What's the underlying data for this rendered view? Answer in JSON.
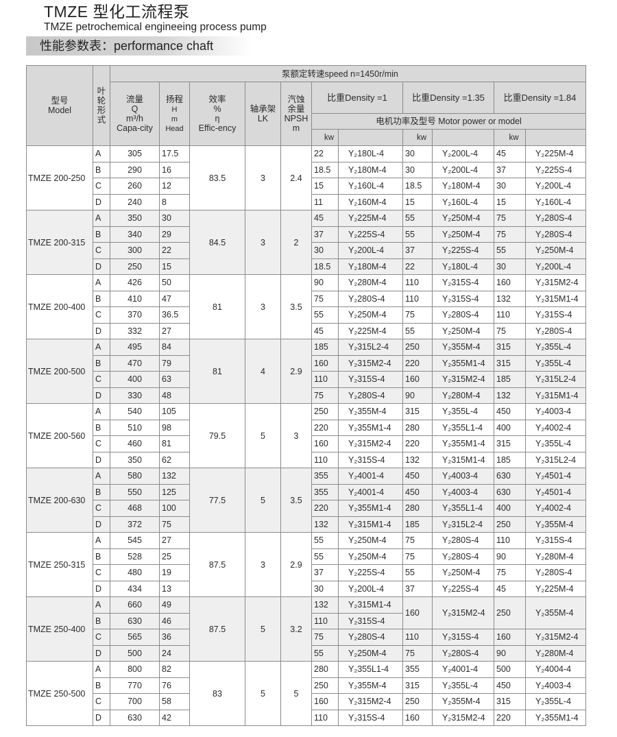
{
  "title": "TMZE 型化工流程泵",
  "subtitle": "TMZE petrochemical engineeing process pump",
  "section": "性能参数表：performance chaft",
  "colors": {
    "header_bg": "#d9d9d9",
    "shaded_group_bg": "#efefef",
    "border": "#8a8a8a"
  },
  "header": {
    "model": [
      "型号",
      "Model"
    ],
    "impeller": [
      "叶",
      "轮",
      "形",
      "式"
    ],
    "speed": "泵额定转速speed n=1450r/min",
    "flow": [
      "流量",
      "Q",
      "m³/h",
      "Capa-city"
    ],
    "head": [
      "扬程",
      "H",
      "m",
      "Head"
    ],
    "efficiency": [
      "效率",
      "%",
      "η",
      "Effic-ency"
    ],
    "lk": [
      "轴承架",
      "LK"
    ],
    "npsh": [
      "汽蚀",
      "余量",
      "NPSH",
      "m"
    ],
    "density": [
      "比重Density =1",
      "比重Density =1.35",
      "比重Density =1.84"
    ],
    "motor": "电机功率及型号  Motor power or model",
    "kw": "kw"
  },
  "groups": [
    {
      "model": "TMZE 200-250",
      "eff": "83.5",
      "lk": "3",
      "npsh": "2.4",
      "rows": [
        {
          "t": "A",
          "q": "305",
          "h": "17.5",
          "m": [
            "22",
            "Y₂180L-4",
            "30",
            "Y₂200L-4",
            "45",
            "Y₂225M-4"
          ]
        },
        {
          "t": "B",
          "q": "290",
          "h": "16",
          "m": [
            "18.5",
            "Y₂180M-4",
            "30",
            "Y₂200L-4",
            "37",
            "Y₂225S-4"
          ]
        },
        {
          "t": "C",
          "q": "260",
          "h": "12",
          "m": [
            "15",
            "Y₂160L-4",
            "18.5",
            "Y₂180M-4",
            "30",
            "Y₂200L-4"
          ]
        },
        {
          "t": "D",
          "q": "240",
          "h": "8",
          "m": [
            "11",
            "Y₂160M-4",
            "15",
            "Y₂160L-4",
            "15",
            "Y₂160L-4"
          ]
        }
      ]
    },
    {
      "model": "TMZE 200-315",
      "eff": "84.5",
      "lk": "3",
      "npsh": "2",
      "rows": [
        {
          "t": "A",
          "q": "350",
          "h": "30",
          "m": [
            "45",
            "Y₂225M-4",
            "55",
            "Y₂250M-4",
            "75",
            "Y₂280S-4"
          ]
        },
        {
          "t": "B",
          "q": "340",
          "h": "29",
          "m": [
            "37",
            "Y₂225S-4",
            "55",
            "Y₂250M-4",
            "75",
            "Y₂280S-4"
          ]
        },
        {
          "t": "C",
          "q": "300",
          "h": "22",
          "m": [
            "30",
            "Y₂200L-4",
            "37",
            "Y₂225S-4",
            "55",
            "Y₂250M-4"
          ]
        },
        {
          "t": "D",
          "q": "250",
          "h": "15",
          "m": [
            "18.5",
            "Y₂180M-4",
            "22",
            "Y₂180L-4",
            "30",
            "Y₂200L-4"
          ]
        }
      ]
    },
    {
      "model": "TMZE 200-400",
      "eff": "81",
      "lk": "3",
      "npsh": "3.5",
      "rows": [
        {
          "t": "A",
          "q": "426",
          "h": "50",
          "m": [
            "90",
            "Y₂280M-4",
            "110",
            "Y₂315S-4",
            "160",
            "Y₂315M2-4"
          ]
        },
        {
          "t": "B",
          "q": "410",
          "h": "47",
          "m": [
            "75",
            "Y₂280S-4",
            "110",
            "Y₂315S-4",
            "132",
            "Y₂315M1-4"
          ]
        },
        {
          "t": "C",
          "q": "370",
          "h": "36.5",
          "m": [
            "55",
            "Y₂250M-4",
            "75",
            "Y₂280S-4",
            "110",
            "Y₂315S-4"
          ]
        },
        {
          "t": "D",
          "q": "332",
          "h": "27",
          "m": [
            "45",
            "Y₂225M-4",
            "55",
            "Y₂250M-4",
            "75",
            "Y₂280S-4"
          ]
        }
      ]
    },
    {
      "model": "TMZE 200-500",
      "eff": "81",
      "lk": "4",
      "npsh": "2.9",
      "rows": [
        {
          "t": "A",
          "q": "495",
          "h": "84",
          "m": [
            "185",
            "Y₂315L2-4",
            "250",
            "Y₂355M-4",
            "315",
            "Y₂355L-4"
          ]
        },
        {
          "t": "B",
          "q": "470",
          "h": "79",
          "m": [
            "160",
            "Y₂315M2-4",
            "220",
            "Y₂355M1-4",
            "315",
            "Y₂355L-4"
          ]
        },
        {
          "t": "C",
          "q": "400",
          "h": "63",
          "m": [
            "110",
            "Y₂315S-4",
            "160",
            "Y₂315M2-4",
            "185",
            "Y₂315L2-4"
          ]
        },
        {
          "t": "D",
          "q": "330",
          "h": "48",
          "m": [
            "75",
            "Y₂280S-4",
            "90",
            "Y₂280M-4",
            "132",
            "Y₂315M1-4"
          ]
        }
      ]
    },
    {
      "model": "TMZE 200-560",
      "eff": "79.5",
      "lk": "5",
      "npsh": "3",
      "rows": [
        {
          "t": "A",
          "q": "540",
          "h": "105",
          "m": [
            "250",
            "Y₂355M-4",
            "315",
            "Y₂355L-4",
            "450",
            "Y₂4003-4"
          ]
        },
        {
          "t": "B",
          "q": "510",
          "h": "98",
          "m": [
            "220",
            "Y₂355M1-4",
            "280",
            "Y₂355L1-4",
            "400",
            "Y₂4002-4"
          ]
        },
        {
          "t": "C",
          "q": "460",
          "h": "81",
          "m": [
            "160",
            "Y₂315M2-4",
            "220",
            "Y₂355M1-4",
            "315",
            "Y₂355L-4"
          ]
        },
        {
          "t": "D",
          "q": "350",
          "h": "62",
          "m": [
            "110",
            "Y₂315S-4",
            "132",
            "Y₂315M1-4",
            "185",
            "Y₂315L2-4"
          ]
        }
      ]
    },
    {
      "model": "TMZE 200-630",
      "eff": "77.5",
      "lk": "5",
      "npsh": "3.5",
      "rows": [
        {
          "t": "A",
          "q": "580",
          "h": "132",
          "m": [
            "355",
            "Y₂4001-4",
            "450",
            "Y₂4003-4",
            "630",
            "Y₂4501-4"
          ]
        },
        {
          "t": "B",
          "q": "550",
          "h": "125",
          "m": [
            "355",
            "Y₂4001-4",
            "450",
            "Y₂4003-4",
            "630",
            "Y₂4501-4"
          ]
        },
        {
          "t": "C",
          "q": "468",
          "h": "100",
          "m": [
            "220",
            "Y₂355M1-4",
            "280",
            "Y₂355L1-4",
            "400",
            "Y₂4002-4"
          ]
        },
        {
          "t": "D",
          "q": "372",
          "h": "75",
          "m": [
            "132",
            "Y₂315M1-4",
            "185",
            "Y₂315L2-4",
            "250",
            "Y₂355M-4"
          ]
        }
      ]
    },
    {
      "model": "TMZE 250-315",
      "eff": "87.5",
      "lk": "3",
      "npsh": "2.9",
      "rows": [
        {
          "t": "A",
          "q": "545",
          "h": "27",
          "m": [
            "55",
            "Y₂250M-4",
            "75",
            "Y₂280S-4",
            "110",
            "Y₂315S-4"
          ]
        },
        {
          "t": "B",
          "q": "528",
          "h": "25",
          "m": [
            "55",
            "Y₂250M-4",
            "75",
            "Y₂280S-4",
            "90",
            "Y₂280M-4"
          ]
        },
        {
          "t": "C",
          "q": "480",
          "h": "19",
          "m": [
            "37",
            "Y₂225S-4",
            "55",
            "Y₂250M-4",
            "75",
            "Y₂280S-4"
          ]
        },
        {
          "t": "D",
          "q": "434",
          "h": "13",
          "m": [
            "30",
            "Y₂200L-4",
            "37",
            "Y₂225S-4",
            "45",
            "Y₂225M-4"
          ]
        }
      ]
    },
    {
      "model": "TMZE 250-400",
      "eff": "87.5",
      "lk": "5",
      "npsh": "3.2",
      "rows": [
        {
          "t": "A",
          "q": "660",
          "h": "49",
          "m": [
            "132",
            "Y₂315M1-4",
            "160",
            "Y₂315M2-4",
            "250",
            "Y₂355M-4"
          ]
        },
        {
          "t": "B",
          "q": "630",
          "h": "46",
          "m": [
            "110",
            "Y₂315S-4",
            null,
            null,
            null,
            null
          ]
        },
        {
          "t": "C",
          "q": "565",
          "h": "36",
          "m": [
            "75",
            "Y₂280S-4",
            "110",
            "Y₂315S-4",
            "160",
            "Y₂315M2-4"
          ]
        },
        {
          "t": "D",
          "q": "500",
          "h": "24",
          "m": [
            "55",
            "Y₂250M-4",
            "75",
            "Y₂280S-4",
            "90",
            "Y₂280M-4"
          ]
        }
      ]
    },
    {
      "model": "TMZE 250-500",
      "eff": "83",
      "lk": "5",
      "npsh": "5",
      "rows": [
        {
          "t": "A",
          "q": "800",
          "h": "82",
          "m": [
            "280",
            "Y₂355L1-4",
            "355",
            "Y₂4001-4",
            "500",
            "Y₂4004-4"
          ]
        },
        {
          "t": "B",
          "q": "770",
          "h": "76",
          "m": [
            "250",
            "Y₂355M-4",
            "315",
            "Y₂355L-4",
            "450",
            "Y₂4003-4"
          ]
        },
        {
          "t": "C",
          "q": "700",
          "h": "58",
          "m": [
            "160",
            "Y₂315M2-4",
            "250",
            "Y₂355M-4",
            "315",
            "Y₂355L-4"
          ]
        },
        {
          "t": "D",
          "q": "630",
          "h": "42",
          "m": [
            "110",
            "Y₂315S-4",
            "160",
            "Y₂315M2-4",
            "220",
            "Y₂355M1-4"
          ]
        }
      ]
    }
  ]
}
